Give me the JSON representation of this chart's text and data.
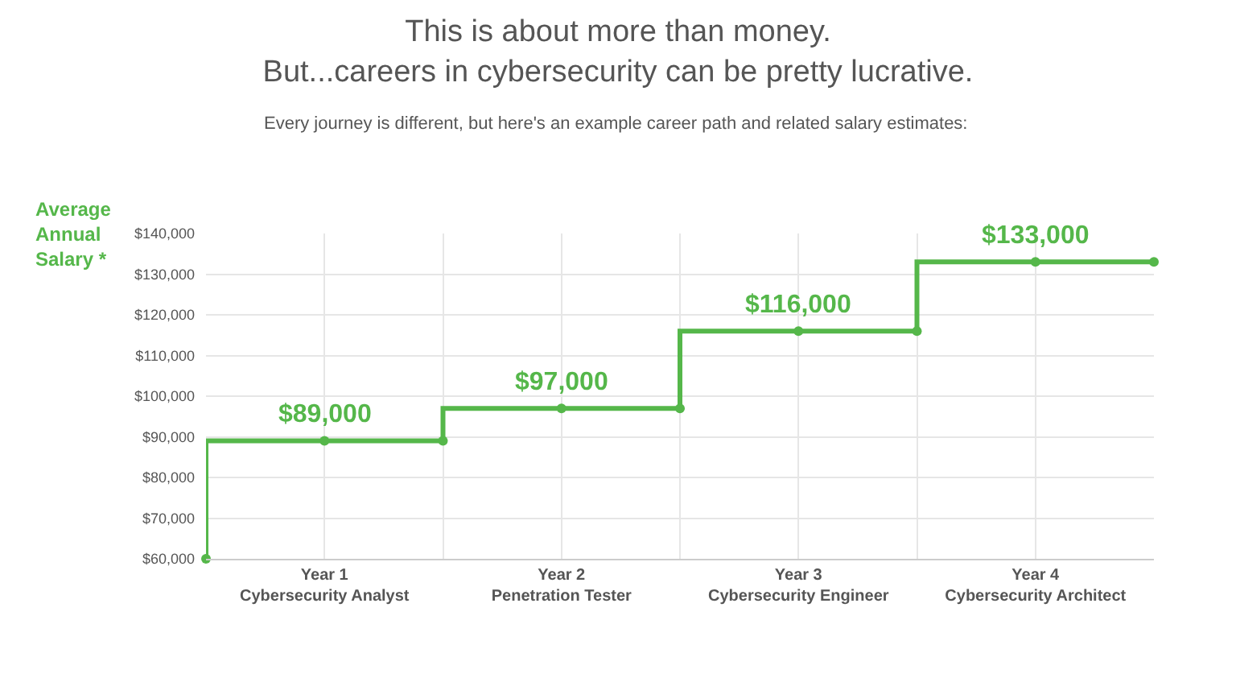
{
  "chart_data": {
    "type": "step",
    "title": "This is about more than money.\nBut...careers in cybersecurity can be pretty lucrative.",
    "subtitle": "Every journey is different, but here's an example career path and related salary estimates:",
    "ylabel": "Average\nAnnual\nSalary *",
    "categories": [
      null,
      "Year 1\nCybersecurity Analyst",
      null,
      "Year 2\nPenetration Tester",
      null,
      "Year 3\nCybersecurity Engineer",
      null,
      "Year 4\nCybersecurity Architect",
      null
    ],
    "values": [
      60000,
      89000,
      89000,
      97000,
      97000,
      116000,
      116000,
      133000,
      133000
    ],
    "value_labels": [
      null,
      "$89,000",
      null,
      "$97,000",
      null,
      "$116,000",
      null,
      "$133,000",
      null
    ],
    "color": "#55b74a",
    "marker": "circle",
    "grid": true,
    "ylim": [
      60000,
      140000
    ],
    "yticks": [
      {
        "value": 60000,
        "label": "$60,000"
      },
      {
        "value": 70000,
        "label": "$70,000"
      },
      {
        "value": 80000,
        "label": "$80,000"
      },
      {
        "value": 90000,
        "label": "$90,000"
      },
      {
        "value": 100000,
        "label": "$100,000"
      },
      {
        "value": 110000,
        "label": "$110,000"
      },
      {
        "value": 120000,
        "label": "$120,000"
      },
      {
        "value": 130000,
        "label": "$130,000"
      },
      {
        "value": 140000,
        "label": "$140,000"
      }
    ]
  }
}
